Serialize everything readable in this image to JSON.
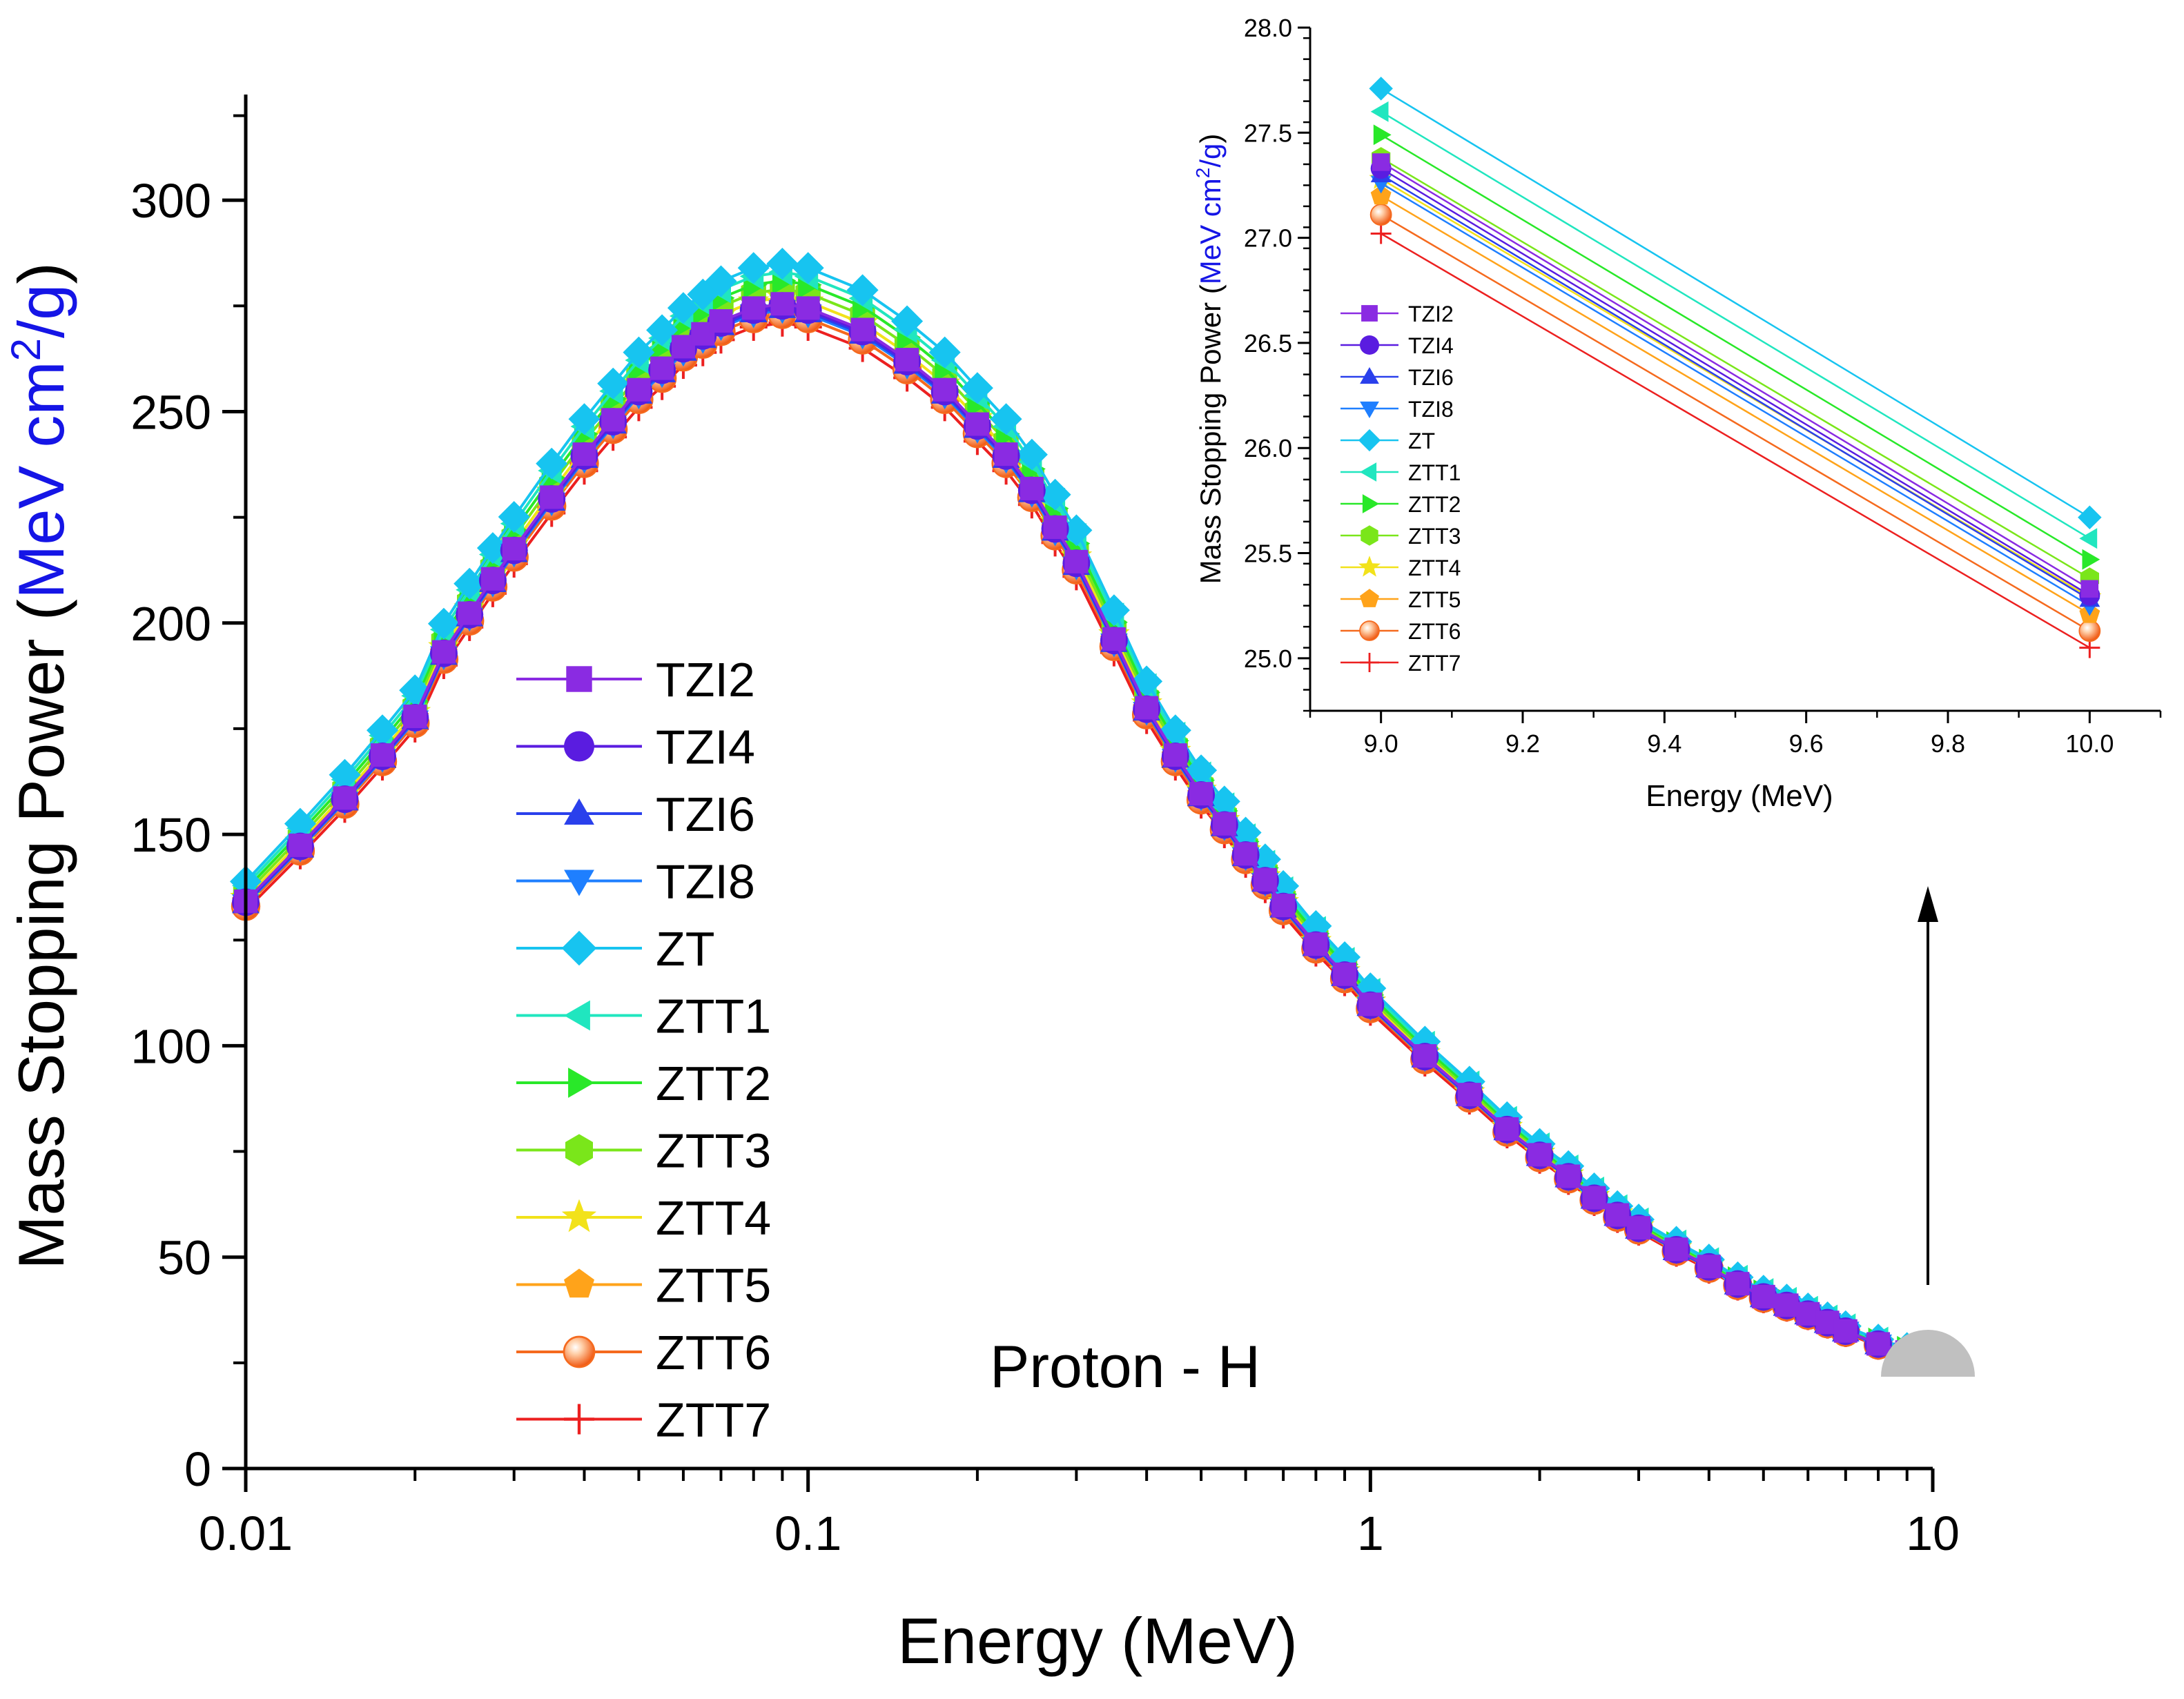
{
  "chart_data": [
    {
      "id": "main",
      "type": "line",
      "x_scale": "log",
      "title": "",
      "annotation": "Proton - H",
      "xlabel": "Energy (MeV)",
      "ylabel_parts": [
        "Mass Stopping Power (",
        "MeV cm",
        "2",
        "/g",
        ")"
      ],
      "xlim": [
        0.01,
        10
      ],
      "ylim": [
        0,
        325
      ],
      "xticks": [
        0.01,
        0.1,
        1,
        10
      ],
      "xtick_labels": [
        "0.01",
        "0.1",
        "1",
        "10"
      ],
      "yticks": [
        0,
        50,
        100,
        150,
        200,
        250,
        300
      ],
      "ytick_labels": [
        "0",
        "50",
        "100",
        "150",
        "200",
        "250",
        "300"
      ],
      "grid": false,
      "legend": "center-left",
      "curve": {
        "x": [
          0.01,
          0.0125,
          0.015,
          0.0175,
          0.02,
          0.0225,
          0.025,
          0.0275,
          0.03,
          0.035,
          0.04,
          0.045,
          0.05,
          0.055,
          0.06,
          0.065,
          0.07,
          0.08,
          0.09,
          0.1,
          0.125,
          0.15,
          0.175,
          0.2,
          0.225,
          0.25,
          0.275,
          0.3,
          0.35,
          0.4,
          0.45,
          0.5,
          0.55,
          0.6,
          0.65,
          0.7,
          0.8,
          0.9,
          1.0,
          1.25,
          1.5,
          1.75,
          2.0,
          2.25,
          2.5,
          2.75,
          3.0,
          3.5,
          4.0,
          4.5,
          5.0,
          5.5,
          6.0,
          6.5,
          7.0,
          8.0,
          9.0,
          10.0
        ],
        "base": [
          132,
          145,
          156,
          166,
          175,
          190,
          199,
          207,
          214,
          226,
          236,
          244,
          251,
          256,
          261,
          264,
          267,
          270,
          271,
          270,
          265,
          258,
          251,
          243,
          236,
          228,
          219,
          211,
          193,
          177,
          166,
          157,
          150,
          143,
          137,
          131,
          122,
          115,
          108,
          96,
          87,
          79,
          73,
          68,
          63,
          59,
          56,
          51,
          47,
          43,
          40,
          38,
          36,
          34,
          32,
          29,
          27.1,
          25.1
        ]
      },
      "series": [
        {
          "name": "TZI2",
          "color": "#8a2be2",
          "marker": "square",
          "offset": 4.5
        },
        {
          "name": "TZI4",
          "color": "#5a1ce0",
          "marker": "circle",
          "offset": 4.0
        },
        {
          "name": "TZI6",
          "color": "#2a40ec",
          "marker": "triangle-up",
          "offset": 3.5
        },
        {
          "name": "TZI8",
          "color": "#1e7fff",
          "marker": "triangle-down",
          "offset": 3.0
        },
        {
          "name": "ZT",
          "color": "#17c4f0",
          "marker": "diamond",
          "offset": 14
        },
        {
          "name": "ZTT1",
          "color": "#20e6bf",
          "marker": "triangle-left",
          "offset": 12
        },
        {
          "name": "ZTT2",
          "color": "#29e829",
          "marker": "triangle-right",
          "offset": 10
        },
        {
          "name": "ZTT3",
          "color": "#7ae61a",
          "marker": "hexagon",
          "offset": 8
        },
        {
          "name": "ZTT4",
          "color": "#f2e21a",
          "marker": "star",
          "offset": 6
        },
        {
          "name": "ZTT5",
          "color": "#ffa31a",
          "marker": "pentagon",
          "offset": 4
        },
        {
          "name": "ZTT6",
          "color": "#f56a1e",
          "marker": "sphere",
          "offset": 2
        },
        {
          "name": "ZTT7",
          "color": "#ec2020",
          "marker": "plus",
          "offset": 0
        }
      ]
    },
    {
      "id": "inset",
      "type": "line",
      "xlabel": "Energy (MeV)",
      "ylabel_parts": [
        "Mass Stopping Power (",
        "MeV cm",
        "2",
        "/g",
        ")"
      ],
      "xlim": [
        8.9,
        10.1
      ],
      "ylim": [
        24.75,
        28.0
      ],
      "xticks": [
        9.0,
        9.2,
        9.4,
        9.6,
        9.8,
        10.0
      ],
      "xtick_labels": [
        "9.0",
        "9.2",
        "9.4",
        "9.6",
        "9.8",
        "10.0"
      ],
      "yticks": [
        25.0,
        25.5,
        26.0,
        26.5,
        27.0,
        27.5,
        28.0
      ],
      "ytick_labels": [
        "25.0",
        "25.5",
        "26.0",
        "26.5",
        "27.0",
        "27.5",
        "28.0"
      ],
      "grid": false,
      "legend": "left",
      "x": [
        9.0,
        10.0
      ],
      "series": [
        {
          "name": "TZI2",
          "values": [
            27.36,
            25.33
          ]
        },
        {
          "name": "TZI4",
          "values": [
            27.33,
            25.3
          ]
        },
        {
          "name": "TZI6",
          "values": [
            27.3,
            25.28
          ]
        },
        {
          "name": "TZI8",
          "values": [
            27.26,
            25.25
          ]
        },
        {
          "name": "ZT",
          "values": [
            27.71,
            25.67
          ]
        },
        {
          "name": "ZTT1",
          "values": [
            27.6,
            25.57
          ]
        },
        {
          "name": "ZTT2",
          "values": [
            27.49,
            25.47
          ]
        },
        {
          "name": "ZTT3",
          "values": [
            27.38,
            25.38
          ]
        },
        {
          "name": "ZTT4",
          "values": [
            27.28,
            25.29
          ]
        },
        {
          "name": "ZTT5",
          "values": [
            27.2,
            25.21
          ]
        },
        {
          "name": "ZTT6",
          "values": [
            27.11,
            25.13
          ]
        },
        {
          "name": "ZTT7",
          "values": [
            27.02,
            25.05
          ]
        }
      ]
    }
  ]
}
